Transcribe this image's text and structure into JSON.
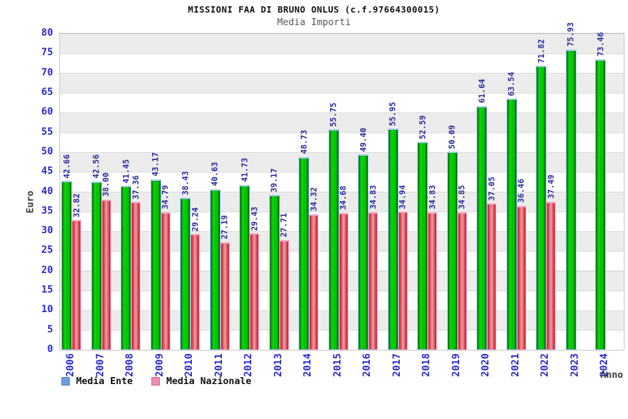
{
  "header": {
    "title": "MISSIONI FAA DI BRUNO ONLUS (c.f.97664300015)",
    "subtitle": "Media Importi"
  },
  "chart_data": {
    "type": "bar",
    "title": "MISSIONI FAA DI BRUNO ONLUS (c.f.97664300015)",
    "subtitle": "Media Importi",
    "xlabel": "Anno",
    "ylabel": "Euro",
    "ylim": [
      0,
      80
    ],
    "ytick_step": 5,
    "yticks": [
      0,
      5,
      10,
      15,
      20,
      25,
      30,
      35,
      40,
      45,
      50,
      55,
      60,
      65,
      70,
      75,
      80
    ],
    "grid": "horizontal bands alternating gray/white every 5 units, light gridlines",
    "legend_position": "bottom-left",
    "categories": [
      "2006",
      "2007",
      "2008",
      "2009",
      "2010",
      "2011",
      "2012",
      "2013",
      "2014",
      "2015",
      "2016",
      "2017",
      "2018",
      "2019",
      "2020",
      "2021",
      "2022",
      "2023",
      "2024"
    ],
    "series": [
      {
        "name": "Media Ente",
        "bar_style": "green",
        "legend_color": "#6e9ddc",
        "legend_border": "#4a78b8",
        "values": [
          42.66,
          42.56,
          41.45,
          43.17,
          38.43,
          40.63,
          41.73,
          39.17,
          48.73,
          55.75,
          49.4,
          55.95,
          52.59,
          50.09,
          61.64,
          63.54,
          71.82,
          75.93,
          73.46
        ]
      },
      {
        "name": "Media Nazionale",
        "bar_style": "red",
        "legend_color": "#ef8bb1",
        "legend_border": "#c85e8a",
        "values": [
          32.82,
          38.0,
          37.36,
          34.79,
          29.24,
          27.19,
          29.43,
          27.71,
          34.32,
          34.68,
          34.83,
          34.94,
          34.83,
          34.85,
          37.05,
          36.46,
          37.49,
          null,
          null
        ]
      }
    ],
    "colors": {
      "bar_green_center": "#00e400",
      "bar_green_edge": "#046304",
      "bar_red_center": "#efa0a0",
      "bar_red_edge": "#c01a30",
      "tick_label": "#2a2ad0",
      "value_label": "#2a2a9d",
      "band_gray": "#ececec",
      "gridline": "#d9d9d9",
      "subtitle_gray": "#555555"
    }
  }
}
